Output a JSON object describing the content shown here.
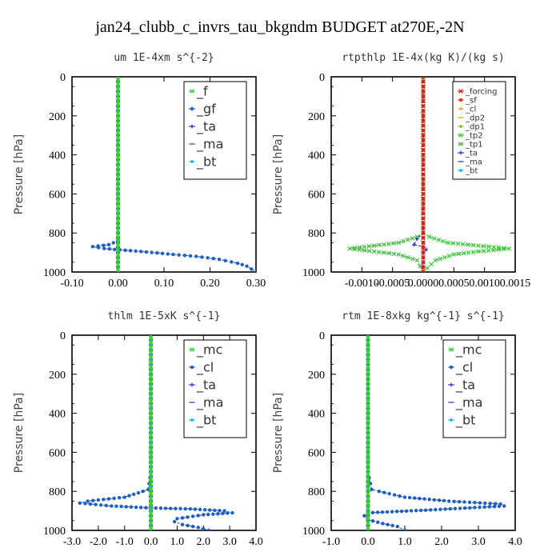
{
  "title": "jan24_clubb_c_invrs_tau_bkgndm  BUDGET at270E,-2N",
  "chart_data": [
    {
      "type": "line",
      "title": "um  1E-4xm s^{-2}",
      "ylabel": "Pressure [hPa]",
      "xlim": [
        -0.1,
        0.3
      ],
      "ylim": [
        1000,
        0
      ],
      "xticks": [
        "-0.10",
        "0.00",
        "0.10",
        "0.20",
        "0.30"
      ],
      "yticks": [
        "0",
        "200",
        "400",
        "600",
        "800",
        "1000"
      ],
      "legend_position": "top-right",
      "series": [
        {
          "name": "_f",
          "color": "#33cc33",
          "marker": "x",
          "points": [
            [
              0.0,
              0
            ],
            [
              0.0,
              100
            ],
            [
              0.0,
              200
            ],
            [
              0.0,
              300
            ],
            [
              0.0,
              400
            ],
            [
              0.0,
              500
            ],
            [
              0.0,
              600
            ],
            [
              0.0,
              700
            ],
            [
              0.0,
              800
            ],
            [
              0.0,
              900
            ],
            [
              0.0,
              1000
            ]
          ]
        },
        {
          "name": "_gf",
          "color": "#1f5fbf",
          "marker": "dot",
          "points": [
            [
              0.0,
              0
            ],
            [
              0.0,
              400
            ],
            [
              0.0,
              700
            ],
            [
              0.0,
              800
            ],
            [
              0.0,
              840
            ],
            [
              -0.02,
              860
            ],
            [
              -0.055,
              870
            ],
            [
              -0.03,
              880
            ],
            [
              0.05,
              895
            ],
            [
              0.12,
              910
            ],
            [
              0.17,
              920
            ],
            [
              0.22,
              935
            ],
            [
              0.26,
              955
            ],
            [
              0.28,
              970
            ],
            [
              0.29,
              985
            ],
            [
              0.3,
              1000
            ]
          ]
        },
        {
          "name": "_ta",
          "color": "#2222cc",
          "marker": "plus",
          "points": [
            [
              0.0,
              0
            ],
            [
              0.0,
              1000
            ]
          ]
        },
        {
          "name": "_ma",
          "color": "#3355cc",
          "marker": "dash",
          "points": [
            [
              0.0,
              0
            ],
            [
              0.0,
              1000
            ]
          ]
        },
        {
          "name": "_bt",
          "color": "#00bbdd",
          "marker": "diamond",
          "points": [
            [
              0.0,
              0
            ],
            [
              0.0,
              1000
            ]
          ]
        }
      ]
    },
    {
      "type": "line",
      "title": "rtpthlp  1E-4x(kg K)/(kg s)",
      "ylabel": "Pressure [hPa]",
      "xlim": [
        -0.0015,
        0.0015
      ],
      "ylim": [
        1000,
        0
      ],
      "xticks": [
        "-0.0010",
        "-0.0005",
        "0.0000",
        "0.0005",
        "0.0010",
        "0.0015"
      ],
      "yticks": [
        "0",
        "200",
        "400",
        "600",
        "800",
        "1000"
      ],
      "legend_position": "top-right",
      "series": [
        {
          "name": "_forcing",
          "color": "#cc2222",
          "marker": "x",
          "points": [
            [
              0.0,
              0
            ],
            [
              0.0,
              500
            ],
            [
              0.0,
              1000
            ]
          ]
        },
        {
          "name": "_sf",
          "color": "#dd3311",
          "marker": "dot",
          "points": [
            [
              0.0,
              0
            ],
            [
              0.0,
              500
            ],
            [
              0.0,
              1000
            ]
          ]
        },
        {
          "name": "_cl",
          "color": "#ee9922",
          "marker": "plus",
          "points": [
            [
              0.0,
              0
            ],
            [
              0.0,
              1000
            ]
          ]
        },
        {
          "name": "_dp2",
          "color": "#ddaa33",
          "marker": "dash",
          "points": [
            [
              0.0,
              0
            ],
            [
              0.0,
              1000
            ]
          ]
        },
        {
          "name": "_dp1",
          "color": "#88bb22",
          "marker": "diamond",
          "points": [
            [
              0.0,
              0
            ],
            [
              0.0,
              1000
            ]
          ]
        },
        {
          "name": "_tp2",
          "color": "#33cc33",
          "marker": "x",
          "points": [
            [
              0.0,
              0
            ],
            [
              0.0,
              800
            ],
            [
              0.0001,
              820
            ],
            [
              0.0004,
              850
            ],
            [
              0.0009,
              865
            ],
            [
              0.0014,
              880
            ],
            [
              0.0009,
              895
            ],
            [
              0.0005,
              910
            ],
            [
              0.0002,
              940
            ],
            [
              0.0,
              1000
            ]
          ]
        },
        {
          "name": "_tp1",
          "color": "#44bb44",
          "marker": "x",
          "points": [
            [
              0.0,
              0
            ],
            [
              0.0,
              800
            ],
            [
              -0.0001,
              820
            ],
            [
              -0.0004,
              850
            ],
            [
              -0.0008,
              865
            ],
            [
              -0.0012,
              880
            ],
            [
              -0.0008,
              895
            ],
            [
              -0.0004,
              910
            ],
            [
              -0.0001,
              940
            ],
            [
              0.0,
              1000
            ]
          ]
        },
        {
          "name": "_ta",
          "color": "#2222cc",
          "marker": "plus",
          "points": [
            [
              0.0,
              0
            ],
            [
              0.0,
              800
            ],
            [
              -0.0001,
              830
            ],
            [
              -0.00015,
              860
            ],
            [
              0.0,
              870
            ],
            [
              5e-05,
              885
            ],
            [
              0.0,
              900
            ],
            [
              0.0,
              1000
            ]
          ]
        },
        {
          "name": "_ma",
          "color": "#3355cc",
          "marker": "dash",
          "points": [
            [
              0.0,
              0
            ],
            [
              0.0,
              1000
            ]
          ]
        },
        {
          "name": "_bt",
          "color": "#00bbdd",
          "marker": "diamond",
          "points": [
            [
              0.0,
              0
            ],
            [
              0.0,
              1000
            ]
          ]
        }
      ]
    },
    {
      "type": "line",
      "title": "thlm  1E-5xK s^{-1}",
      "ylabel": "Pressure [hPa]",
      "xlim": [
        -3.0,
        4.0
      ],
      "ylim": [
        1000,
        0
      ],
      "xticks": [
        "-3.0",
        "-2.0",
        "-1.0",
        "0.0",
        "1.0",
        "2.0",
        "3.0",
        "4.0"
      ],
      "yticks": [
        "0",
        "200",
        "400",
        "600",
        "800",
        "1000"
      ],
      "legend_position": "top-right",
      "series": [
        {
          "name": "_mc",
          "color": "#33cc33",
          "marker": "x",
          "points": [
            [
              0.0,
              0
            ],
            [
              0.0,
              100
            ],
            [
              0.0,
              200
            ],
            [
              0.0,
              300
            ],
            [
              0.0,
              400
            ],
            [
              0.0,
              500
            ],
            [
              0.0,
              600
            ],
            [
              0.0,
              700
            ],
            [
              0.0,
              800
            ],
            [
              0.0,
              900
            ],
            [
              0.0,
              1000
            ]
          ]
        },
        {
          "name": "_cl",
          "color": "#1f5fbf",
          "marker": "dot",
          "points": [
            [
              0.0,
              0
            ],
            [
              0.0,
              700
            ],
            [
              -0.1,
              790
            ],
            [
              -0.3,
              800
            ],
            [
              -1.0,
              830
            ],
            [
              -2.4,
              850
            ],
            [
              -2.7,
              860
            ],
            [
              -1.5,
              875
            ],
            [
              0.0,
              885
            ],
            [
              1.5,
              890
            ],
            [
              2.8,
              900
            ],
            [
              3.1,
              910
            ],
            [
              2.0,
              920
            ],
            [
              1.0,
              940
            ],
            [
              0.9,
              955
            ],
            [
              1.2,
              970
            ],
            [
              1.8,
              985
            ],
            [
              2.2,
              1000
            ]
          ]
        },
        {
          "name": "_ta",
          "color": "#2222cc",
          "marker": "plus",
          "points": [
            [
              0.0,
              0
            ],
            [
              0.0,
              1000
            ]
          ]
        },
        {
          "name": "_ma",
          "color": "#3355cc",
          "marker": "dash",
          "points": [
            [
              0.0,
              0
            ],
            [
              0.0,
              1000
            ]
          ]
        },
        {
          "name": "_bt",
          "color": "#00bbdd",
          "marker": "diamond",
          "points": [
            [
              0.0,
              0
            ],
            [
              0.0,
              1000
            ]
          ]
        }
      ]
    },
    {
      "type": "line",
      "title": "rtm  1E-8xkg kg^{-1} s^{-1}",
      "ylabel": "Pressure [hPa]",
      "xlim": [
        -1.0,
        4.0
      ],
      "ylim": [
        1000,
        0
      ],
      "xticks": [
        "-1.0",
        "0.0",
        "1.0",
        "2.0",
        "3.0",
        "4.0"
      ],
      "yticks": [
        "0",
        "200",
        "400",
        "600",
        "800",
        "1000"
      ],
      "legend_position": "top-right",
      "series": [
        {
          "name": "_mc",
          "color": "#33cc33",
          "marker": "x",
          "points": [
            [
              0.0,
              0
            ],
            [
              0.0,
              100
            ],
            [
              0.0,
              200
            ],
            [
              0.0,
              300
            ],
            [
              0.0,
              400
            ],
            [
              0.0,
              500
            ],
            [
              0.0,
              600
            ],
            [
              0.0,
              700
            ],
            [
              0.0,
              800
            ],
            [
              0.0,
              900
            ],
            [
              0.0,
              1000
            ]
          ]
        },
        {
          "name": "_cl",
          "color": "#1f5fbf",
          "marker": "dot",
          "points": [
            [
              0.0,
              0
            ],
            [
              0.0,
              700
            ],
            [
              0.1,
              790
            ],
            [
              0.3,
              800
            ],
            [
              1.0,
              830
            ],
            [
              2.2,
              850
            ],
            [
              3.6,
              865
            ],
            [
              3.7,
              875
            ],
            [
              1.7,
              895
            ],
            [
              0.0,
              910
            ],
            [
              -0.1,
              925
            ],
            [
              0.0,
              945
            ],
            [
              0.4,
              965
            ],
            [
              0.8,
              980
            ],
            [
              1.0,
              1000
            ]
          ]
        },
        {
          "name": "_ta",
          "color": "#2222cc",
          "marker": "plus",
          "points": [
            [
              0.0,
              0
            ],
            [
              0.0,
              1000
            ]
          ]
        },
        {
          "name": "_ma",
          "color": "#3355cc",
          "marker": "dash",
          "points": [
            [
              0.0,
              0
            ],
            [
              0.0,
              1000
            ]
          ]
        },
        {
          "name": "_bt",
          "color": "#00bbdd",
          "marker": "diamond",
          "points": [
            [
              0.0,
              0
            ],
            [
              0.0,
              1000
            ]
          ]
        }
      ]
    }
  ]
}
